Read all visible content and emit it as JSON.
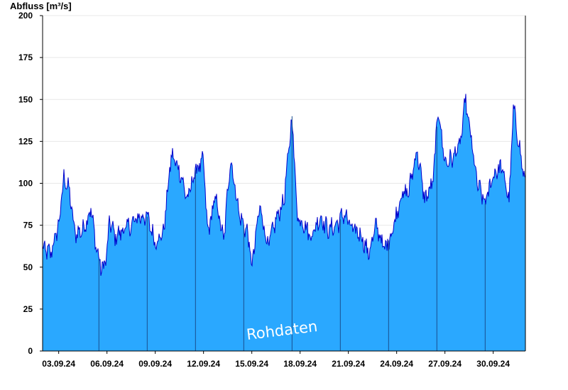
{
  "chart_data": {
    "type": "area",
    "ylabel": "Abfluss [m³/s]",
    "ylim": [
      0,
      200
    ],
    "yticks": [
      0,
      25,
      50,
      75,
      100,
      125,
      150,
      175,
      200
    ],
    "xlim": [
      "2024-09-02 00:00",
      "2024-10-02 00:00"
    ],
    "xticks": [
      "03.09.24",
      "06.09.24",
      "09.09.24",
      "12.09.24",
      "15.09.24",
      "18.09.24",
      "21.09.24",
      "24.09.24",
      "27.09.24",
      "30.09.24"
    ],
    "grid": true,
    "fill_color": "#2aa8ff",
    "line_color": "#0000cc",
    "watermark": "Rohdaten",
    "series": [
      {
        "x": [
          "2024-09-02 00:00",
          "2024-09-02 12:00",
          "2024-09-03 00:00",
          "2024-09-03 08:00",
          "2024-09-03 16:00",
          "2024-09-04 00:00",
          "2024-09-04 12:00",
          "2024-09-05 00:00",
          "2024-09-05 08:00",
          "2024-09-05 16:00",
          "2024-09-05 23:00",
          "2024-09-06 04:00",
          "2024-09-06 12:00",
          "2024-09-07 00:00",
          "2024-09-07 12:00",
          "2024-09-08 00:00",
          "2024-09-08 12:00",
          "2024-09-09 00:00",
          "2024-09-09 12:00",
          "2024-09-10 00:00",
          "2024-09-10 12:00",
          "2024-09-11 00:00",
          "2024-09-11 12:00",
          "2024-09-12 00:00",
          "2024-09-12 06:00",
          "2024-09-12 18:00",
          "2024-09-13 06:00",
          "2024-09-13 16:00",
          "2024-09-14 06:00",
          "2024-09-14 18:00",
          "2024-09-15 00:00",
          "2024-09-15 12:00",
          "2024-09-16 00:00",
          "2024-09-16 12:00",
          "2024-09-17 00:00",
          "2024-09-17 12:00",
          "2024-09-17 20:00",
          "2024-09-18 06:00",
          "2024-09-18 16:00",
          "2024-09-19 06:00",
          "2024-09-19 18:00",
          "2024-09-20 06:00",
          "2024-09-20 18:00",
          "2024-09-21 06:00",
          "2024-09-21 18:00",
          "2024-09-22 06:00",
          "2024-09-22 18:00",
          "2024-09-23 06:00",
          "2024-09-23 18:00",
          "2024-09-24 06:00",
          "2024-09-24 18:00",
          "2024-09-25 06:00",
          "2024-09-25 18:00",
          "2024-09-26 06:00",
          "2024-09-26 14:00",
          "2024-09-27 00:00",
          "2024-09-27 12:00",
          "2024-09-28 00:00",
          "2024-09-28 06:00",
          "2024-09-28 12:00",
          "2024-09-29 00:00",
          "2024-09-29 12:00",
          "2024-09-30 00:00",
          "2024-09-30 12:00",
          "2024-10-01 00:00",
          "2024-10-01 06:00",
          "2024-10-01 12:00",
          "2024-10-02 00:00"
        ],
        "values": [
          61,
          58,
          75,
          104,
          95,
          70,
          72,
          85,
          62,
          48,
          55,
          78,
          68,
          72,
          75,
          80,
          80,
          65,
          70,
          117,
          108,
          90,
          108,
          113,
          70,
          92,
          65,
          115,
          80,
          70,
          50,
          87,
          62,
          78,
          90,
          140,
          80,
          76,
          68,
          80,
          72,
          75,
          82,
          72,
          70,
          58,
          75,
          60,
          72,
          92,
          95,
          120,
          90,
          100,
          145,
          112,
          115,
          125,
          150,
          135,
          100,
          88,
          105,
          110,
          90,
          145,
          130,
          98
        ]
      }
    ]
  }
}
